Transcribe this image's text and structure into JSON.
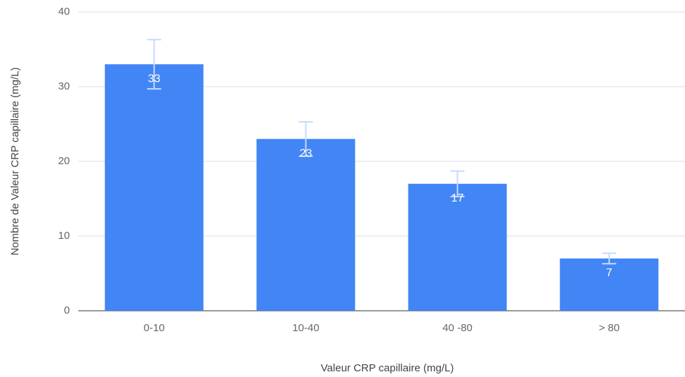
{
  "chart_data": {
    "type": "bar",
    "x_label": "Valeur CRP capillaire (mg/L)",
    "y_label": "Nombre de Valeur CRP capillaire (mg/L)",
    "categories": [
      "0-10",
      "10-40",
      "40 -80",
      "> 80"
    ],
    "values": [
      33,
      23,
      17,
      7
    ],
    "errors": [
      3.3,
      2.3,
      1.7,
      0.7
    ],
    "color": "#4285f4",
    "error_color": "#c6dafc",
    "ylim": [
      0,
      40
    ],
    "yticks": [
      0,
      10,
      20,
      30,
      40
    ],
    "grid": true
  }
}
